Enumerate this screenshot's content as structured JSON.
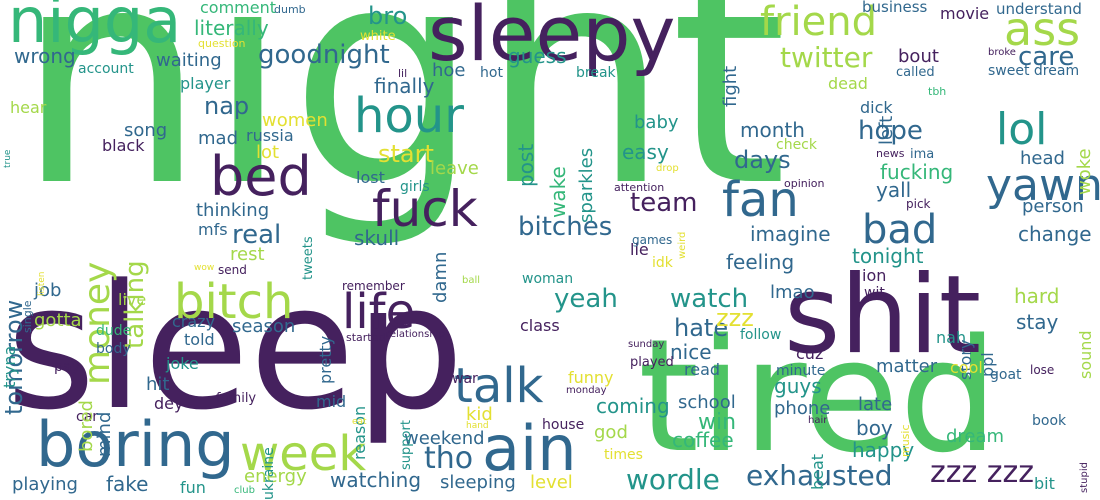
{
  "palette": {
    "green": "#4ec463",
    "purple": "#45215e",
    "teal": "#23948a",
    "lightgreen": "#a4d84a",
    "yellow": "#e3e032",
    "blue": "#31688e",
    "seagreen": "#35b779"
  },
  "words": [
    {
      "text": "night",
      "color": "green"
    },
    {
      "text": "sleep",
      "color": "purple"
    },
    {
      "text": "tired",
      "color": "green"
    },
    {
      "text": "shit",
      "color": "purple"
    },
    {
      "text": "sleepy",
      "color": "purple"
    },
    {
      "text": "nigga",
      "color": "seagreen"
    },
    {
      "text": "boring",
      "color": "blue"
    },
    {
      "text": "ain",
      "color": "blue"
    },
    {
      "text": "bed",
      "color": "purple"
    },
    {
      "text": "fuck",
      "color": "purple"
    },
    {
      "text": "hour",
      "color": "teal"
    },
    {
      "text": "bitch",
      "color": "lightgreen"
    },
    {
      "text": "life",
      "color": "purple"
    },
    {
      "text": "talk",
      "color": "blue"
    },
    {
      "text": "week",
      "color": "lightgreen"
    },
    {
      "text": "fan",
      "color": "blue"
    },
    {
      "text": "yawn",
      "color": "blue"
    },
    {
      "text": "friend",
      "color": "lightgreen"
    },
    {
      "text": "ass",
      "color": "lightgreen"
    },
    {
      "text": "lol",
      "color": "teal"
    },
    {
      "text": "bad",
      "color": "blue"
    },
    {
      "text": "money",
      "color": "lightgreen"
    },
    {
      "text": "goodnight",
      "color": "blue"
    },
    {
      "text": "twitter",
      "color": "lightgreen"
    },
    {
      "text": "exhausted",
      "color": "blue"
    },
    {
      "text": "zzz zzz",
      "color": "purple"
    },
    {
      "text": "tho",
      "color": "blue"
    },
    {
      "text": "wordle",
      "color": "teal"
    },
    {
      "text": "talking",
      "color": "lightgreen"
    },
    {
      "text": "tomorrow",
      "color": "blue"
    },
    {
      "text": "bitches",
      "color": "blue"
    },
    {
      "text": "team",
      "color": "purple"
    },
    {
      "text": "days",
      "color": "blue"
    },
    {
      "text": "hope",
      "color": "blue"
    },
    {
      "text": "watch",
      "color": "teal"
    },
    {
      "text": "hate",
      "color": "blue"
    },
    {
      "text": "yeah",
      "color": "teal"
    },
    {
      "text": "real",
      "color": "blue"
    },
    {
      "text": "care",
      "color": "blue"
    },
    {
      "text": "nap",
      "color": "blue"
    },
    {
      "text": "bro",
      "color": "teal"
    },
    {
      "text": "start",
      "color": "yellow"
    },
    {
      "text": "literally",
      "color": "seagreen"
    },
    {
      "text": "wrong",
      "color": "blue"
    },
    {
      "text": "waiting",
      "color": "blue"
    },
    {
      "text": "guess",
      "color": "teal"
    },
    {
      "text": "finally",
      "color": "blue"
    },
    {
      "text": "hoe",
      "color": "blue"
    },
    {
      "text": "post",
      "color": "teal"
    },
    {
      "text": "wake",
      "color": "seagreen"
    },
    {
      "text": "easy",
      "color": "teal"
    },
    {
      "text": "baby",
      "color": "teal"
    },
    {
      "text": "month",
      "color": "blue"
    },
    {
      "text": "fucking",
      "color": "seagreen"
    },
    {
      "text": "yall",
      "color": "blue"
    },
    {
      "text": "imagine",
      "color": "blue"
    },
    {
      "text": "tonight",
      "color": "teal"
    },
    {
      "text": "feeling",
      "color": "blue"
    },
    {
      "text": "lmao",
      "color": "blue"
    },
    {
      "text": "zzz",
      "color": "yellow"
    },
    {
      "text": "nice",
      "color": "blue"
    },
    {
      "text": "coming",
      "color": "teal"
    },
    {
      "text": "win",
      "color": "seagreen"
    },
    {
      "text": "coffee",
      "color": "seagreen"
    },
    {
      "text": "god",
      "color": "lightgreen"
    },
    {
      "text": "weekend",
      "color": "blue"
    },
    {
      "text": "watching",
      "color": "blue"
    },
    {
      "text": "sleeping",
      "color": "blue"
    },
    {
      "text": "level",
      "color": "yellow"
    },
    {
      "text": "energy",
      "color": "lightgreen"
    },
    {
      "text": "fake",
      "color": "blue"
    },
    {
      "text": "fun",
      "color": "teal"
    },
    {
      "text": "playing",
      "color": "blue"
    },
    {
      "text": "hard",
      "color": "lightgreen"
    },
    {
      "text": "stay",
      "color": "blue"
    },
    {
      "text": "guys",
      "color": "teal"
    },
    {
      "text": "matter",
      "color": "blue"
    },
    {
      "text": "happy",
      "color": "teal"
    },
    {
      "text": "boy",
      "color": "blue"
    },
    {
      "text": "late",
      "color": "blue"
    },
    {
      "text": "dream",
      "color": "seagreen"
    },
    {
      "text": "phone",
      "color": "blue"
    },
    {
      "text": "school",
      "color": "blue"
    },
    {
      "text": "read",
      "color": "blue"
    },
    {
      "text": "change",
      "color": "blue"
    },
    {
      "text": "person",
      "color": "blue"
    },
    {
      "text": "head",
      "color": "blue"
    },
    {
      "text": "bout",
      "color": "purple"
    },
    {
      "text": "left",
      "color": "blue"
    },
    {
      "text": "woke",
      "color": "lightgreen"
    },
    {
      "text": "understand",
      "color": "blue"
    },
    {
      "text": "movie",
      "color": "purple"
    },
    {
      "text": "business",
      "color": "blue"
    },
    {
      "text": "sweet dream",
      "color": "blue"
    },
    {
      "text": "called",
      "color": "blue"
    },
    {
      "text": "broke",
      "color": "purple"
    },
    {
      "text": "tbh",
      "color": "seagreen"
    },
    {
      "text": "dick",
      "color": "blue"
    },
    {
      "text": "dead",
      "color": "lightgreen"
    },
    {
      "text": "news",
      "color": "purple"
    },
    {
      "text": "ima",
      "color": "blue"
    },
    {
      "text": "check",
      "color": "lightgreen"
    },
    {
      "text": "opinion",
      "color": "purple"
    },
    {
      "text": "attention",
      "color": "purple"
    },
    {
      "text": "drop",
      "color": "yellow"
    },
    {
      "text": "pick",
      "color": "purple"
    },
    {
      "text": "ion",
      "color": "purple"
    },
    {
      "text": "wit",
      "color": "purple"
    },
    {
      "text": "nah",
      "color": "teal"
    },
    {
      "text": "ppl",
      "color": "blue"
    },
    {
      "text": "story",
      "color": "blue"
    },
    {
      "text": "sound",
      "color": "lightgreen"
    },
    {
      "text": "cool",
      "color": "yellow"
    },
    {
      "text": "goat",
      "color": "blue"
    },
    {
      "text": "lose",
      "color": "purple"
    },
    {
      "text": "book",
      "color": "blue"
    },
    {
      "text": "music",
      "color": "yellow"
    },
    {
      "text": "hair",
      "color": "purple"
    },
    {
      "text": "beat",
      "color": "teal"
    },
    {
      "text": "minute",
      "color": "blue"
    },
    {
      "text": "follow",
      "color": "teal"
    },
    {
      "text": "cuz",
      "color": "purple"
    },
    {
      "text": "stupid",
      "color": "purple"
    },
    {
      "text": "bit",
      "color": "teal"
    },
    {
      "text": "house",
      "color": "purple"
    },
    {
      "text": "times",
      "color": "yellow"
    },
    {
      "text": "kid",
      "color": "yellow"
    },
    {
      "text": "funny",
      "color": "yellow"
    },
    {
      "text": "played",
      "color": "purple"
    },
    {
      "text": "sunday",
      "color": "purple"
    },
    {
      "text": "monday",
      "color": "purple"
    },
    {
      "text": "class",
      "color": "purple"
    },
    {
      "text": "woman",
      "color": "teal"
    },
    {
      "text": "war",
      "color": "purple"
    },
    {
      "text": "relationship",
      "color": "purple"
    },
    {
      "text": "started",
      "color": "purple"
    },
    {
      "text": "reason",
      "color": "teal"
    },
    {
      "text": "support",
      "color": "teal"
    },
    {
      "text": "pretty",
      "color": "blue"
    },
    {
      "text": "remember",
      "color": "purple"
    },
    {
      "text": "mid",
      "color": "blue"
    },
    {
      "text": "family",
      "color": "purple"
    },
    {
      "text": "eat",
      "color": "yellow"
    },
    {
      "text": "hand",
      "color": "yellow"
    },
    {
      "text": "ukraine",
      "color": "teal"
    },
    {
      "text": "club",
      "color": "seagreen"
    },
    {
      "text": "dey",
      "color": "purple"
    },
    {
      "text": "hit",
      "color": "blue"
    },
    {
      "text": "joke",
      "color": "teal"
    },
    {
      "text": "told",
      "color": "blue"
    },
    {
      "text": "crazy",
      "color": "blue"
    },
    {
      "text": "season",
      "color": "blue"
    },
    {
      "text": "live",
      "color": "lightgreen"
    },
    {
      "text": "gotta",
      "color": "lightgreen"
    },
    {
      "text": "job",
      "color": "blue"
    },
    {
      "text": "dude",
      "color": "seagreen"
    },
    {
      "text": "body",
      "color": "blue"
    },
    {
      "text": "pay",
      "color": "purple"
    },
    {
      "text": "car",
      "color": "purple"
    },
    {
      "text": "bored",
      "color": "lightgreen"
    },
    {
      "text": "mind",
      "color": "blue"
    },
    {
      "text": "tryna",
      "color": "teal"
    },
    {
      "text": "single",
      "color": "blue"
    },
    {
      "text": "wow",
      "color": "yellow"
    },
    {
      "text": "listen",
      "color": "yellow"
    },
    {
      "text": "send",
      "color": "purple"
    },
    {
      "text": "rest",
      "color": "lightgreen"
    },
    {
      "text": "skull",
      "color": "blue"
    },
    {
      "text": "lost",
      "color": "blue"
    },
    {
      "text": "girls",
      "color": "teal"
    },
    {
      "text": "damn",
      "color": "blue"
    },
    {
      "text": "leave",
      "color": "lightgreen"
    },
    {
      "text": "lie",
      "color": "purple"
    },
    {
      "text": "games",
      "color": "blue"
    },
    {
      "text": "idk",
      "color": "yellow"
    },
    {
      "text": "weird",
      "color": "yellow"
    },
    {
      "text": "tweets",
      "color": "teal"
    },
    {
      "text": "mfs",
      "color": "blue"
    },
    {
      "text": "thinking",
      "color": "blue"
    },
    {
      "text": "lot",
      "color": "yellow"
    },
    {
      "text": "women",
      "color": "yellow"
    },
    {
      "text": "mad",
      "color": "blue"
    },
    {
      "text": "russia",
      "color": "blue"
    },
    {
      "text": "song",
      "color": "blue"
    },
    {
      "text": "black",
      "color": "purple"
    },
    {
      "text": "true",
      "color": "teal"
    },
    {
      "text": "hear",
      "color": "lightgreen"
    },
    {
      "text": "player",
      "color": "teal"
    },
    {
      "text": "account",
      "color": "teal"
    },
    {
      "text": "question",
      "color": "yellow"
    },
    {
      "text": "comment",
      "color": "seagreen"
    },
    {
      "text": "dumb",
      "color": "blue"
    },
    {
      "text": "white",
      "color": "yellow"
    },
    {
      "text": "lil",
      "color": "purple"
    },
    {
      "text": "hot",
      "color": "blue"
    },
    {
      "text": "ball",
      "color": "lightgreen"
    },
    {
      "text": "break",
      "color": "teal"
    },
    {
      "text": "fight",
      "color": "blue"
    },
    {
      "text": "sparkles",
      "color": "teal"
    }
  ]
}
